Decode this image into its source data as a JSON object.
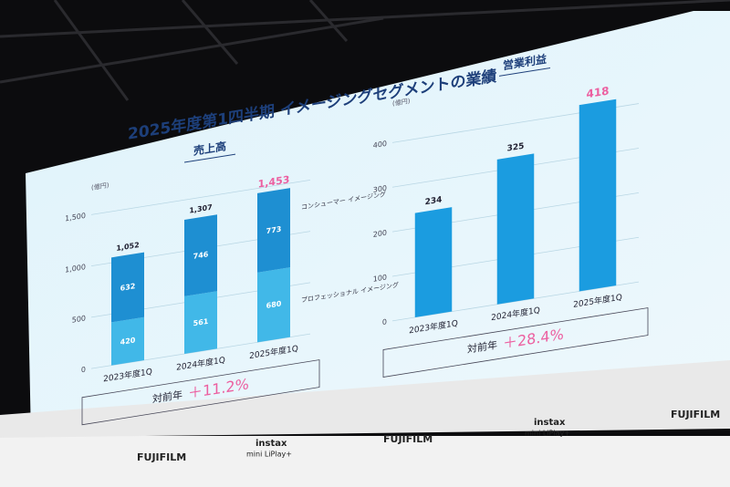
{
  "slide_title": "2025年度第1四半期 イメージングセグメントの業績",
  "chart_data": [
    {
      "type": "stacked_bar",
      "title": "売上高",
      "unit": "(億円)",
      "categories": [
        "2023年度1Q",
        "2024年度1Q",
        "2025年度1Q"
      ],
      "series": [
        {
          "name": "プロフェッショナル イメージング",
          "color": "#41b8e8",
          "values": [
            420,
            561,
            680
          ]
        },
        {
          "name": "コンシューマー イメージング",
          "color": "#1e8fd2",
          "values": [
            632,
            746,
            773
          ]
        }
      ],
      "totals": [
        1052,
        1307,
        1453
      ],
      "total_labels": [
        "1,052",
        "1,307",
        "1,453"
      ],
      "highlight_color": "#ec5fa0",
      "ylim": [
        0,
        1600
      ],
      "yticks": [
        0,
        500,
        {
          "value": 1000,
          "label": "1,000"
        },
        {
          "value": 1500,
          "label": "1,500"
        }
      ],
      "grid": true,
      "comparison_label": "対前年",
      "growth": "＋11.2%"
    },
    {
      "type": "bar",
      "title": "営業利益",
      "unit": "(億円)",
      "categories": [
        "2023年度1Q",
        "2024年度1Q",
        "2025年度1Q"
      ],
      "values": [
        234,
        325,
        418
      ],
      "color": "#1b9ce0",
      "highlight_color": "#ec5fa0",
      "ylim": [
        0,
        450
      ],
      "yticks": [
        0,
        100,
        200,
        300,
        400
      ],
      "grid": true,
      "comparison_label": "対前年",
      "growth": "＋28.4%"
    }
  ],
  "booth": {
    "brand": "FUJIFILM",
    "product": "instax",
    "model": "mini LiPlay+"
  }
}
